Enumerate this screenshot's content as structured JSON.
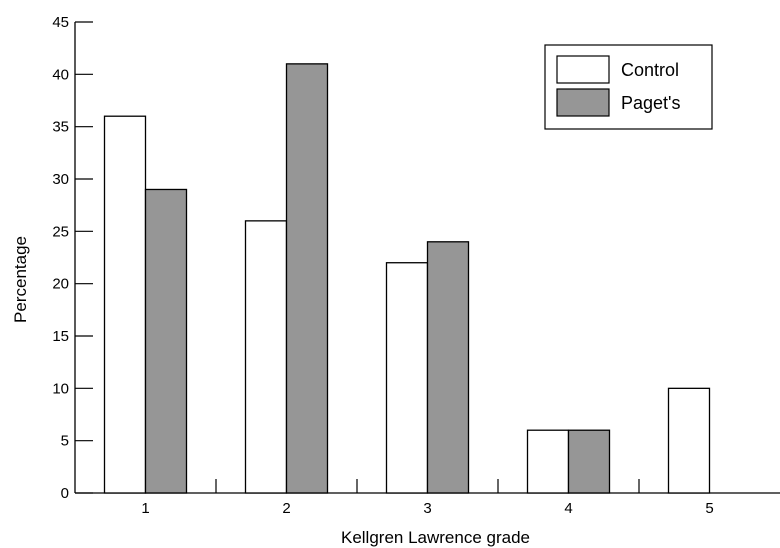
{
  "chart_data": {
    "type": "bar",
    "title": "",
    "xlabel": "Kellgren Lawrence grade",
    "ylabel": "Percentage",
    "categories": [
      "1",
      "2",
      "3",
      "4",
      "5"
    ],
    "yticks": [
      "0",
      "5",
      "10",
      "15",
      "20",
      "25",
      "30",
      "35",
      "40",
      "45"
    ],
    "ylim": [
      0,
      45
    ],
    "grid": false,
    "legend_position": "top-right",
    "series": [
      {
        "name": "Control",
        "values": [
          36,
          26,
          22,
          6,
          10
        ],
        "color": "#ffffff"
      },
      {
        "name": "Paget's",
        "values": [
          29,
          41,
          24,
          6,
          0
        ],
        "color": "#969696"
      }
    ]
  }
}
